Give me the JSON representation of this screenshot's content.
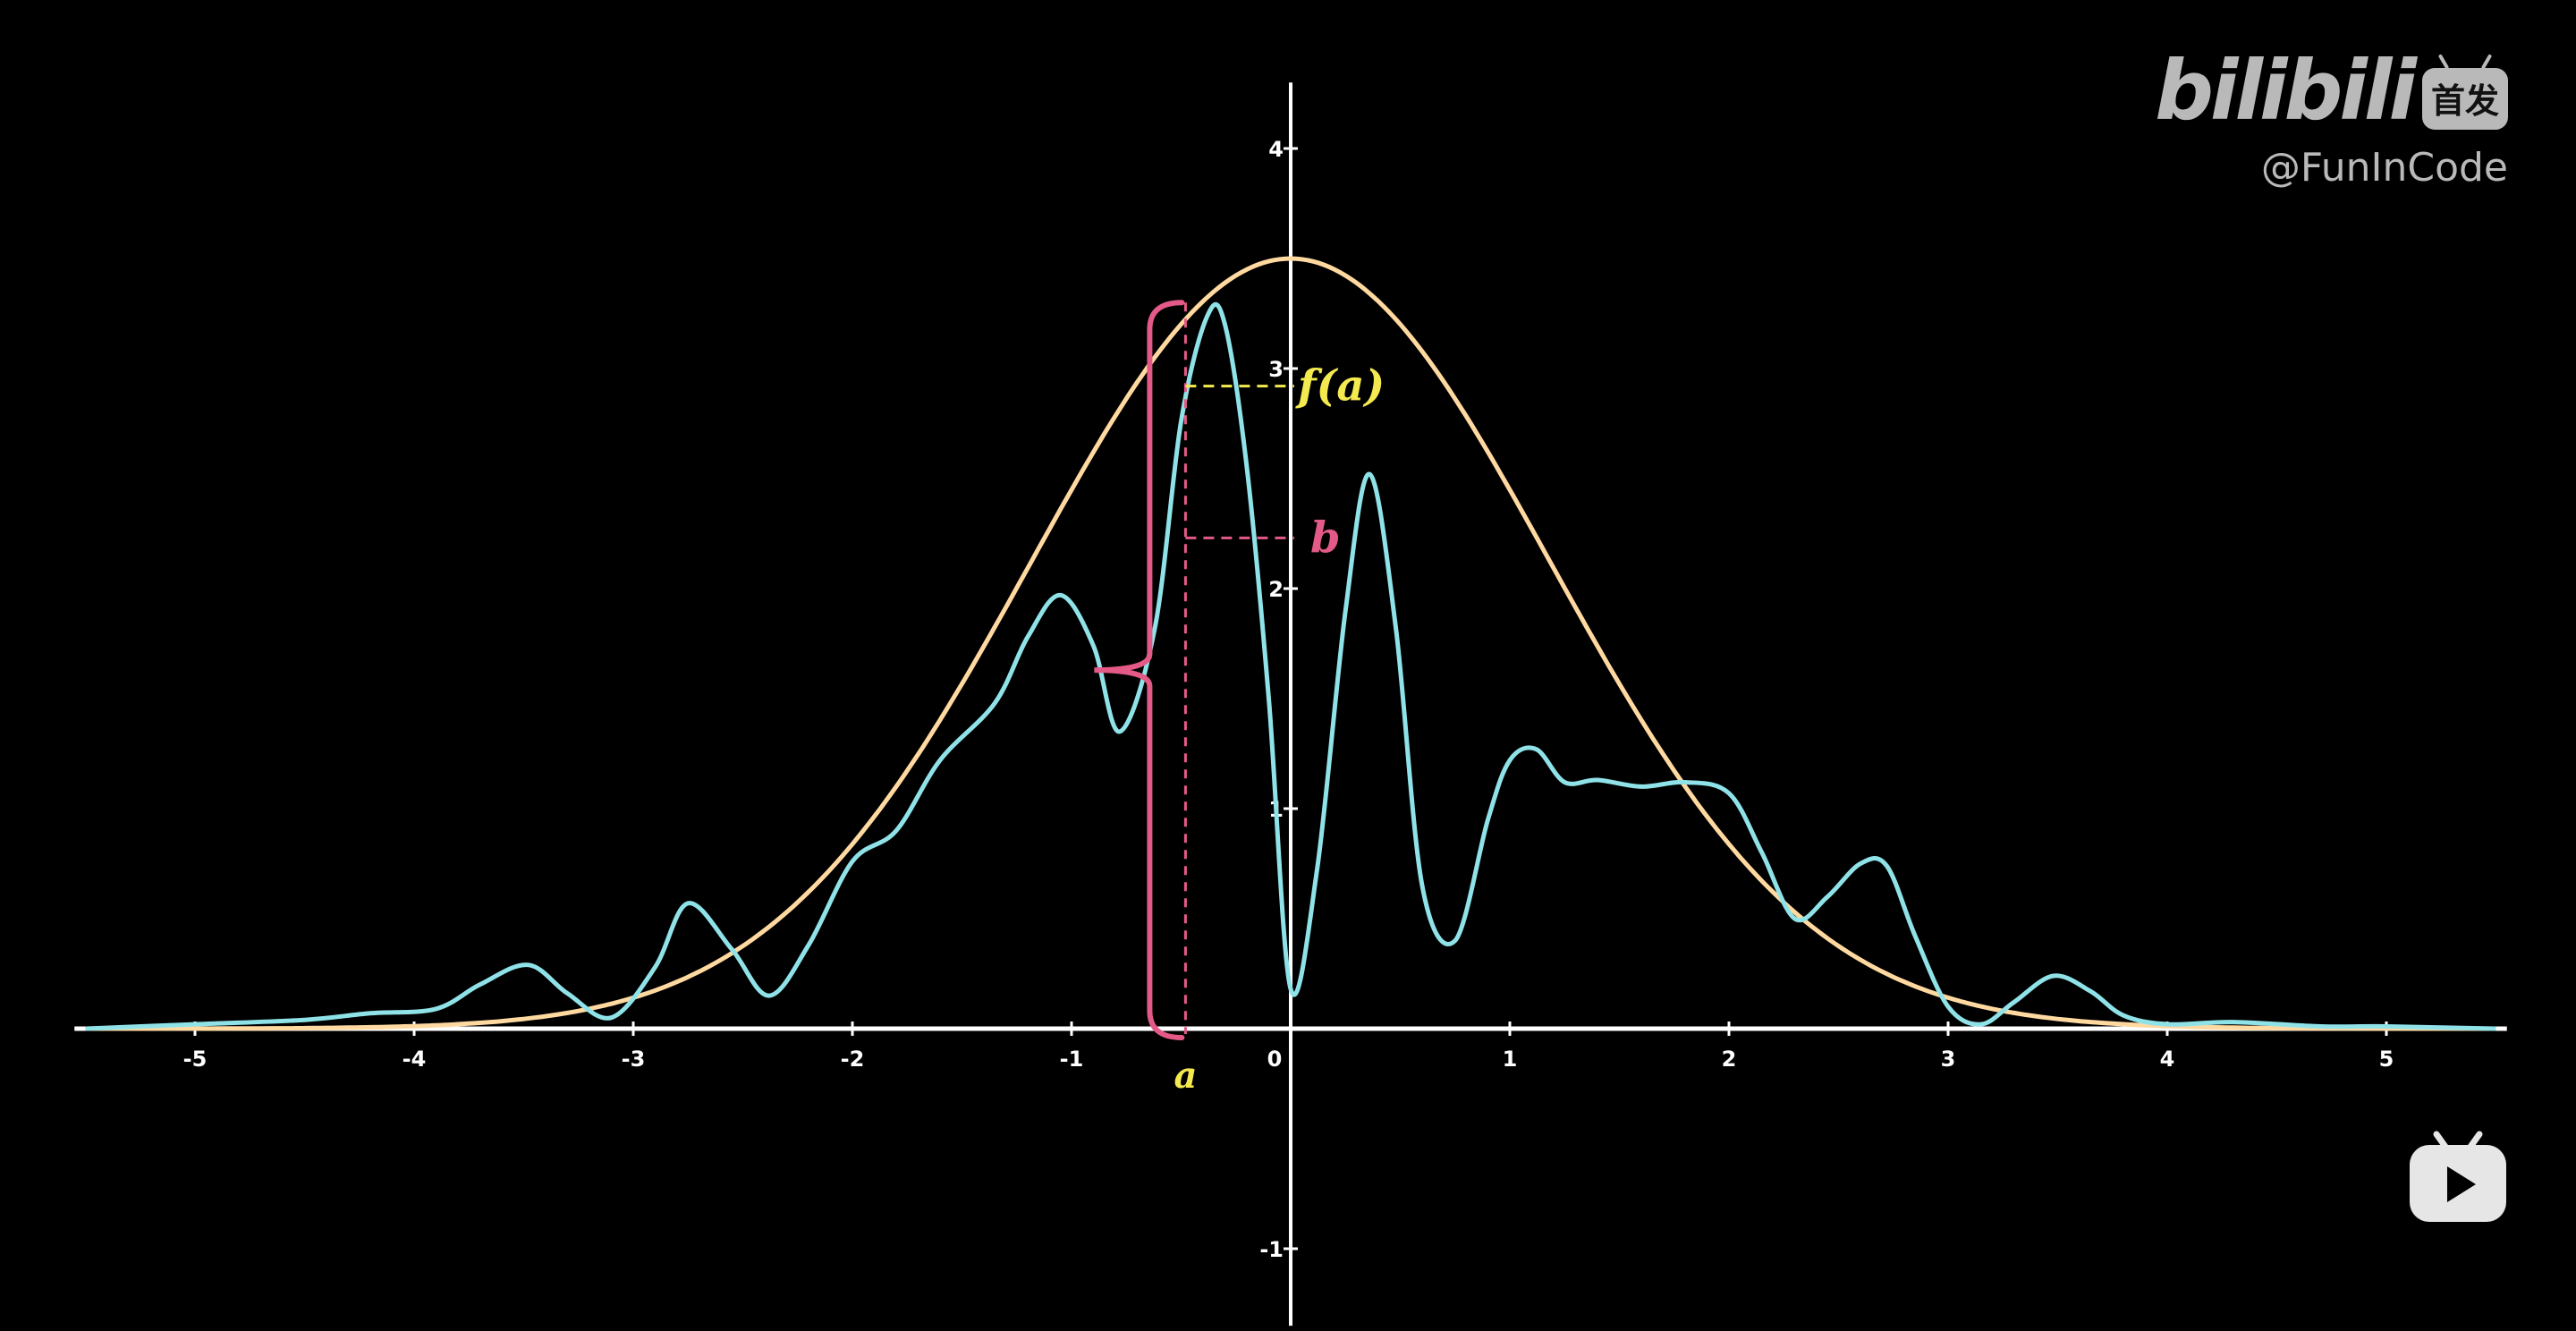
{
  "chart_data": {
    "type": "line",
    "title": "",
    "xlabel": "",
    "ylabel": "",
    "xlim": [
      -5.55,
      5.55
    ],
    "ylim": [
      -1.35,
      4.3
    ],
    "x_ticks": [
      -5,
      -4,
      -3,
      -2,
      -1,
      0,
      1,
      2,
      3,
      4,
      5
    ],
    "y_ticks": [
      -1,
      1,
      2,
      3,
      4
    ],
    "x_tick_labels": [
      "-5",
      "-4",
      "-3",
      "-2",
      "-1",
      "0",
      "1",
      "2",
      "3",
      "4",
      "5"
    ],
    "y_tick_labels": [
      "-1",
      "1",
      "2",
      "3",
      "4"
    ],
    "grid": false,
    "legend": "none",
    "series": [
      {
        "color": "#ffd9a0",
        "x": [
          -5.5,
          -5.0,
          -4.5,
          -4.0,
          -3.5,
          -3.0,
          -2.5,
          -2.0,
          -1.5,
          -1.0,
          -0.5,
          0.0,
          0.5,
          1.0,
          1.5,
          2.0,
          2.5,
          3.0,
          3.5,
          4.0,
          4.5,
          5.0,
          5.5
        ],
        "y": [
          0.01,
          0.04,
          0.1,
          0.22,
          0.43,
          0.78,
          1.28,
          1.89,
          2.52,
          3.05,
          3.38,
          3.5,
          3.38,
          3.05,
          2.52,
          1.89,
          1.28,
          0.78,
          0.43,
          0.22,
          0.1,
          0.04,
          0.01
        ]
      },
      {
        "color": "#8fe3e8",
        "x": [
          -5.5,
          -5.0,
          -4.5,
          -4.2,
          -3.9,
          -3.7,
          -3.48,
          -3.3,
          -3.1,
          -2.9,
          -2.75,
          -2.55,
          -2.38,
          -2.2,
          -2.0,
          -1.8,
          -1.6,
          -1.35,
          -1.2,
          -1.05,
          -0.9,
          -0.78,
          -0.62,
          -0.5,
          -0.38,
          -0.3,
          -0.2,
          -0.1,
          0.0,
          0.12,
          0.25,
          0.36,
          0.48,
          0.6,
          0.75,
          0.9,
          1.0,
          1.12,
          1.25,
          1.4,
          1.6,
          1.8,
          2.0,
          2.15,
          2.3,
          2.45,
          2.6,
          2.72,
          2.85,
          3.0,
          3.15,
          3.3,
          3.48,
          3.65,
          3.8,
          4.0,
          4.3,
          4.7,
          5.0,
          5.5
        ],
        "y": [
          0.0,
          0.02,
          0.04,
          0.07,
          0.09,
          0.2,
          0.29,
          0.16,
          0.05,
          0.28,
          0.57,
          0.36,
          0.15,
          0.38,
          0.76,
          0.9,
          1.22,
          1.48,
          1.78,
          1.97,
          1.74,
          1.35,
          1.82,
          2.76,
          3.24,
          3.2,
          2.55,
          1.5,
          0.18,
          0.72,
          1.9,
          2.52,
          1.82,
          0.65,
          0.4,
          0.95,
          1.22,
          1.27,
          1.12,
          1.13,
          1.1,
          1.12,
          1.07,
          0.8,
          0.5,
          0.6,
          0.75,
          0.74,
          0.42,
          0.1,
          0.02,
          0.12,
          0.24,
          0.17,
          0.06,
          0.02,
          0.03,
          0.01,
          0.01,
          0.0
        ]
      }
    ],
    "annotations": {
      "sample_x": -0.48,
      "brace_bottom": 0.0,
      "brace_top": 3.3,
      "fa_value": 2.92,
      "b_value": 2.23,
      "fa_label": "f(a)",
      "b_label": "b",
      "a_label": "a",
      "fa_color": "#f4ea4f",
      "b_color": "#e35a87",
      "a_color": "#f4ea4f",
      "brace_color": "#e35a87"
    }
  },
  "watermark": {
    "logo": "bilibili",
    "badge": "首发",
    "handle": "@FunInCode",
    "color": "#b9b9b9"
  },
  "player": {
    "icon": "play-icon"
  }
}
